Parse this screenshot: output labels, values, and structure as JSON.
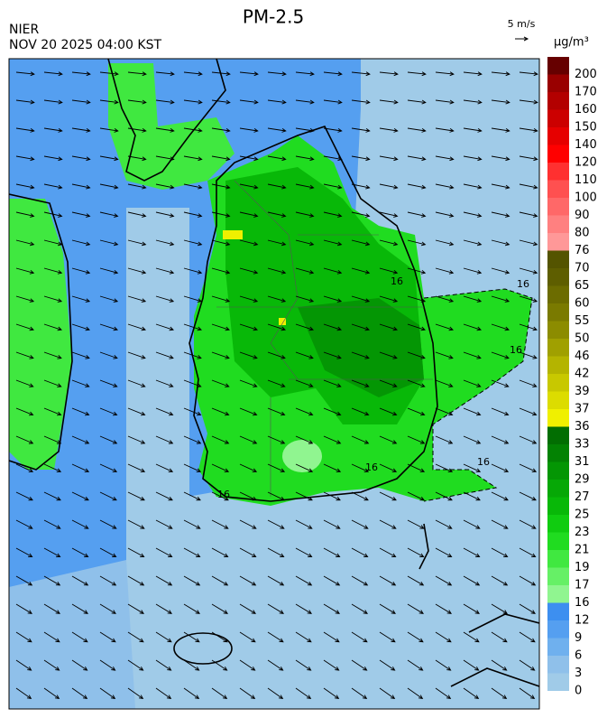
{
  "header": {
    "title": "PM-2.5",
    "agency": "NIER",
    "datetime": "NOV 20 2025 04:00 KST"
  },
  "wind_scale": {
    "label": "5 m/s"
  },
  "map": {
    "contour_label": "16"
  },
  "legend": {
    "unit": "µg/m³",
    "levels": [
      "0",
      "3",
      "6",
      "9",
      "12",
      "16",
      "17",
      "19",
      "21",
      "23",
      "25",
      "27",
      "29",
      "31",
      "33",
      "36",
      "37",
      "39",
      "42",
      "46",
      "50",
      "55",
      "60",
      "65",
      "70",
      "76",
      "80",
      "90",
      "100",
      "110",
      "120",
      "140",
      "150",
      "160",
      "170",
      "200"
    ],
    "colors": [
      "#a0cbe8",
      "#8fc0ea",
      "#6fb0ee",
      "#559ff0",
      "#3d8ff0",
      "#90f590",
      "#66f066",
      "#40e840",
      "#20dc20",
      "#10cc10",
      "#08b808",
      "#06a806",
      "#049604",
      "#038203",
      "#026e02",
      "#f0f000",
      "#dcdc00",
      "#c8c800",
      "#b4b400",
      "#a0a000",
      "#8c8c00",
      "#7a7a00",
      "#6c6c00",
      "#5e5e00",
      "#545400",
      "#ff9898",
      "#ff8080",
      "#ff6868",
      "#ff5050",
      "#ff3030",
      "#ff0000",
      "#e60000",
      "#cc0000",
      "#b30000",
      "#990000",
      "#660000"
    ]
  }
}
